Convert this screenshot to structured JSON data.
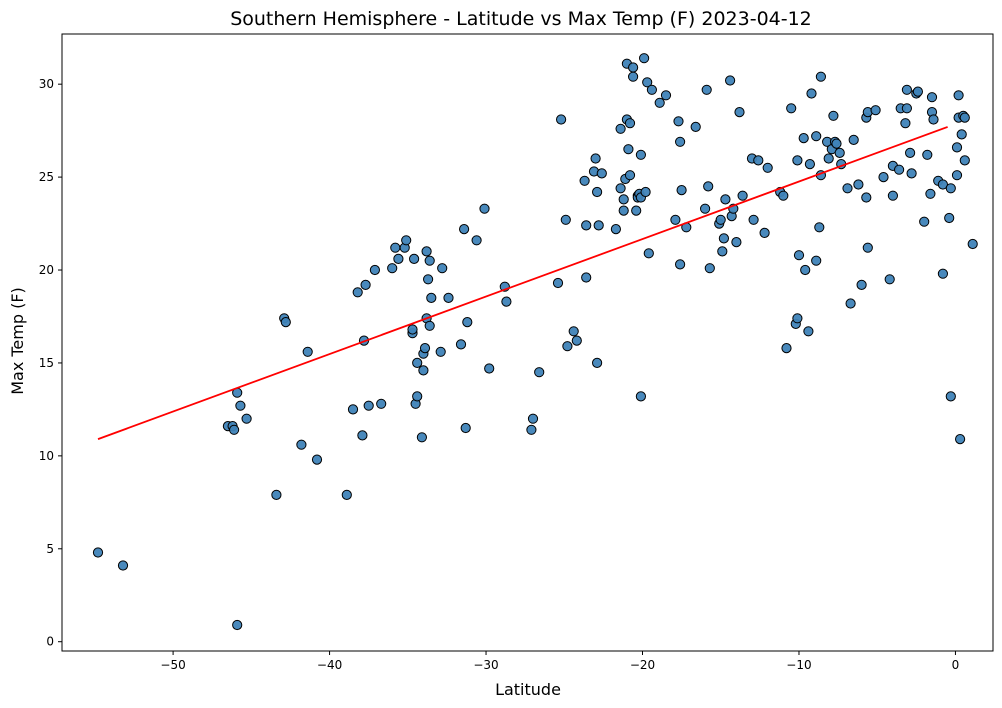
{
  "chart_data": {
    "type": "scatter",
    "title": "Southern Hemisphere - Latitude vs Max Temp (F) 2023-04-12",
    "xlabel": "Latitude",
    "ylabel": "Max Temp (F)",
    "xlim": [
      -57.1,
      2.4
    ],
    "ylim": [
      -0.5,
      32.7
    ],
    "xticks": [
      -50,
      -40,
      -30,
      -20,
      -10,
      0
    ],
    "xtick_labels": [
      "−50",
      "−40",
      "−30",
      "−20",
      "−10",
      "0"
    ],
    "yticks": [
      0,
      5,
      10,
      15,
      20,
      25,
      30
    ],
    "ytick_labels": [
      "0",
      "5",
      "10",
      "15",
      "20",
      "25",
      "30"
    ],
    "grid": false,
    "colors": {
      "marker_face": "#3f83b8",
      "marker_edge": "#000000",
      "regression_line": "#ff0000"
    },
    "regression_line": {
      "x": [
        -54.8,
        -0.5
      ],
      "y": [
        10.9,
        27.7
      ]
    },
    "series": [
      {
        "points": [
          [
            -54.8,
            4.8
          ],
          [
            -53.2,
            4.1
          ],
          [
            -45.9,
            0.9
          ],
          [
            -46.5,
            11.6
          ],
          [
            -46.2,
            11.6
          ],
          [
            -46.1,
            11.4
          ],
          [
            -45.9,
            13.4
          ],
          [
            -45.7,
            12.7
          ],
          [
            -45.3,
            12.0
          ],
          [
            -43.4,
            7.9
          ],
          [
            -42.9,
            17.4
          ],
          [
            -42.8,
            17.2
          ],
          [
            -41.8,
            10.6
          ],
          [
            -41.4,
            15.6
          ],
          [
            -40.8,
            9.8
          ],
          [
            -38.9,
            7.9
          ],
          [
            -38.5,
            12.5
          ],
          [
            -38.2,
            18.8
          ],
          [
            -37.9,
            11.1
          ],
          [
            -37.8,
            16.2
          ],
          [
            -37.7,
            19.2
          ],
          [
            -37.5,
            12.7
          ],
          [
            -37.1,
            20.0
          ],
          [
            -36.7,
            12.8
          ],
          [
            -36.0,
            20.1
          ],
          [
            -35.8,
            21.2
          ],
          [
            -35.6,
            20.6
          ],
          [
            -35.2,
            21.2
          ],
          [
            -35.1,
            21.6
          ],
          [
            -34.7,
            16.6
          ],
          [
            -34.7,
            16.8
          ],
          [
            -34.6,
            20.6
          ],
          [
            -34.5,
            12.8
          ],
          [
            -34.4,
            13.2
          ],
          [
            -34.4,
            15.0
          ],
          [
            -34.1,
            11.0
          ],
          [
            -34.0,
            14.6
          ],
          [
            -34.0,
            15.5
          ],
          [
            -33.9,
            15.8
          ],
          [
            -33.8,
            17.4
          ],
          [
            -33.8,
            21.0
          ],
          [
            -33.7,
            19.5
          ],
          [
            -33.6,
            17.0
          ],
          [
            -33.6,
            20.5
          ],
          [
            -33.5,
            18.5
          ],
          [
            -32.9,
            15.6
          ],
          [
            -32.8,
            20.1
          ],
          [
            -32.4,
            18.5
          ],
          [
            -31.6,
            16.0
          ],
          [
            -31.4,
            22.2
          ],
          [
            -31.3,
            11.5
          ],
          [
            -31.2,
            17.2
          ],
          [
            -30.6,
            21.6
          ],
          [
            -30.1,
            23.3
          ],
          [
            -29.8,
            14.7
          ],
          [
            -28.8,
            19.1
          ],
          [
            -28.7,
            18.3
          ],
          [
            -27.1,
            11.4
          ],
          [
            -27.0,
            12.0
          ],
          [
            -26.6,
            14.5
          ],
          [
            -25.4,
            19.3
          ],
          [
            -25.2,
            28.1
          ],
          [
            -24.9,
            22.7
          ],
          [
            -24.8,
            15.9
          ],
          [
            -24.4,
            16.7
          ],
          [
            -24.2,
            16.2
          ],
          [
            -23.7,
            24.8
          ],
          [
            -23.6,
            22.4
          ],
          [
            -23.6,
            19.6
          ],
          [
            -23.1,
            25.3
          ],
          [
            -23.0,
            26.0
          ],
          [
            -22.9,
            24.2
          ],
          [
            -22.9,
            15.0
          ],
          [
            -22.8,
            22.4
          ],
          [
            -22.6,
            25.2
          ],
          [
            -21.7,
            22.2
          ],
          [
            -21.4,
            24.4
          ],
          [
            -21.4,
            27.6
          ],
          [
            -21.2,
            23.8
          ],
          [
            -21.2,
            23.2
          ],
          [
            -21.1,
            24.9
          ],
          [
            -21.0,
            28.1
          ],
          [
            -21.0,
            31.1
          ],
          [
            -20.9,
            26.5
          ],
          [
            -20.8,
            27.9
          ],
          [
            -20.8,
            25.1
          ],
          [
            -20.6,
            30.9
          ],
          [
            -20.6,
            30.4
          ],
          [
            -20.4,
            23.2
          ],
          [
            -20.3,
            24.0
          ],
          [
            -20.3,
            23.9
          ],
          [
            -20.2,
            24.1
          ],
          [
            -20.1,
            23.9
          ],
          [
            -20.1,
            26.2
          ],
          [
            -20.1,
            13.2
          ],
          [
            -19.9,
            31.4
          ],
          [
            -19.8,
            24.2
          ],
          [
            -19.7,
            30.1
          ],
          [
            -19.6,
            20.9
          ],
          [
            -19.4,
            29.7
          ],
          [
            -18.9,
            29.0
          ],
          [
            -18.5,
            29.4
          ],
          [
            -17.9,
            22.7
          ],
          [
            -17.7,
            28.0
          ],
          [
            -17.6,
            26.9
          ],
          [
            -17.6,
            20.3
          ],
          [
            -17.5,
            24.3
          ],
          [
            -17.2,
            22.3
          ],
          [
            -16.6,
            27.7
          ],
          [
            -16.0,
            23.3
          ],
          [
            -15.9,
            29.7
          ],
          [
            -15.8,
            24.5
          ],
          [
            -15.7,
            20.1
          ],
          [
            -15.1,
            22.5
          ],
          [
            -15.0,
            22.7
          ],
          [
            -14.9,
            21.0
          ],
          [
            -14.8,
            21.7
          ],
          [
            -14.7,
            23.8
          ],
          [
            -14.4,
            30.2
          ],
          [
            -14.3,
            22.9
          ],
          [
            -14.2,
            23.3
          ],
          [
            -14.0,
            21.5
          ],
          [
            -13.8,
            28.5
          ],
          [
            -13.6,
            24.0
          ],
          [
            -13.0,
            26.0
          ],
          [
            -12.9,
            22.7
          ],
          [
            -12.6,
            25.9
          ],
          [
            -12.2,
            22.0
          ],
          [
            -12.0,
            25.5
          ],
          [
            -11.2,
            24.2
          ],
          [
            -11.0,
            24.0
          ],
          [
            -10.8,
            15.8
          ],
          [
            -10.5,
            28.7
          ],
          [
            -10.2,
            17.1
          ],
          [
            -10.1,
            17.4
          ],
          [
            -10.1,
            25.9
          ],
          [
            -10.0,
            20.8
          ],
          [
            -9.7,
            27.1
          ],
          [
            -9.6,
            20.0
          ],
          [
            -9.4,
            16.7
          ],
          [
            -9.3,
            25.7
          ],
          [
            -9.2,
            29.5
          ],
          [
            -8.9,
            27.2
          ],
          [
            -8.9,
            20.5
          ],
          [
            -8.7,
            22.3
          ],
          [
            -8.6,
            25.1
          ],
          [
            -8.6,
            30.4
          ],
          [
            -8.2,
            26.9
          ],
          [
            -8.1,
            26.0
          ],
          [
            -7.9,
            26.5
          ],
          [
            -7.8,
            28.3
          ],
          [
            -7.7,
            26.9
          ],
          [
            -7.6,
            26.8
          ],
          [
            -7.4,
            26.3
          ],
          [
            -7.3,
            25.7
          ],
          [
            -6.9,
            24.4
          ],
          [
            -6.7,
            18.2
          ],
          [
            -6.5,
            27.0
          ],
          [
            -6.2,
            24.6
          ],
          [
            -6.0,
            19.2
          ],
          [
            -5.7,
            23.9
          ],
          [
            -5.6,
            21.2
          ],
          [
            -5.7,
            28.2
          ],
          [
            -5.6,
            28.5
          ],
          [
            -5.1,
            28.6
          ],
          [
            -4.6,
            25.0
          ],
          [
            -4.2,
            19.5
          ],
          [
            -4.0,
            24.0
          ],
          [
            -4.0,
            25.6
          ],
          [
            -3.6,
            25.4
          ],
          [
            -3.5,
            28.7
          ],
          [
            -3.2,
            27.9
          ],
          [
            -3.1,
            29.7
          ],
          [
            -3.1,
            28.7
          ],
          [
            -2.9,
            26.3
          ],
          [
            -2.8,
            25.2
          ],
          [
            -2.5,
            29.5
          ],
          [
            -2.4,
            29.6
          ],
          [
            -2.0,
            22.6
          ],
          [
            -1.8,
            26.2
          ],
          [
            -1.6,
            24.1
          ],
          [
            -1.5,
            29.3
          ],
          [
            -1.5,
            28.5
          ],
          [
            -1.4,
            28.1
          ],
          [
            -1.1,
            24.8
          ],
          [
            -0.8,
            19.8
          ],
          [
            -0.8,
            24.6
          ],
          [
            -0.4,
            22.8
          ],
          [
            -0.3,
            24.4
          ],
          [
            -0.3,
            13.2
          ],
          [
            0.1,
            25.1
          ],
          [
            0.1,
            26.6
          ],
          [
            0.2,
            29.4
          ],
          [
            0.2,
            28.2
          ],
          [
            0.3,
            10.9
          ],
          [
            0.4,
            27.3
          ],
          [
            0.5,
            28.3
          ],
          [
            0.6,
            28.2
          ],
          [
            0.6,
            25.9
          ],
          [
            1.1,
            21.4
          ]
        ]
      }
    ]
  }
}
